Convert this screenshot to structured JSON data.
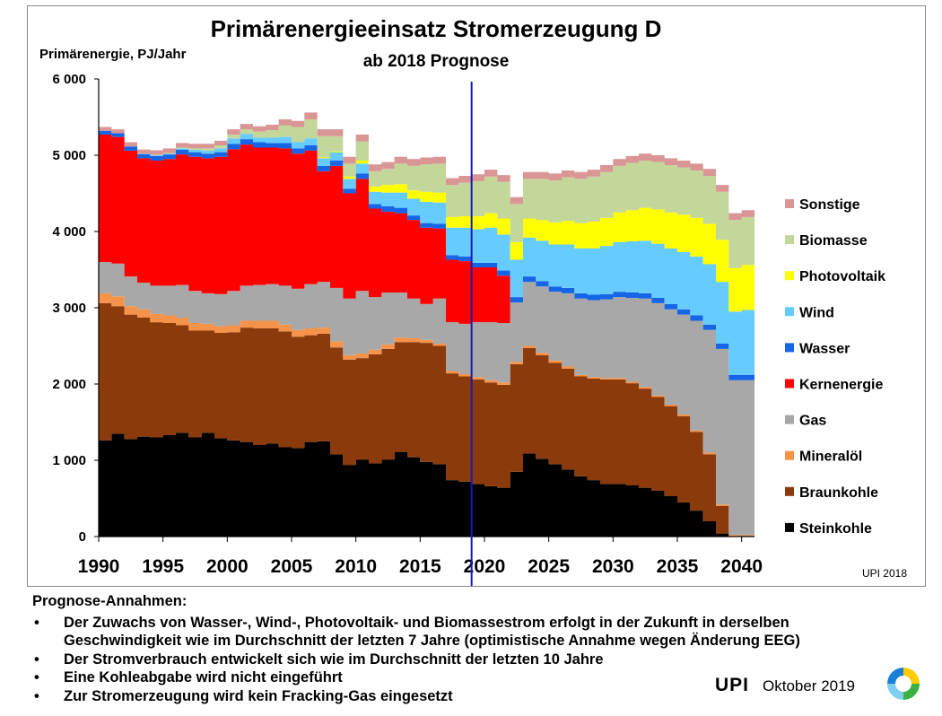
{
  "chart_data": {
    "type": "area",
    "stacked": true,
    "step": true,
    "title": "Primärenergieeinsatz Stromerzeugung D",
    "subtitle": "ab 2018 Prognose",
    "ylabel": "Primärenergie, PJ/Jahr",
    "ylim": [
      0,
      6000
    ],
    "yticks": [
      0,
      1000,
      2000,
      3000,
      4000,
      5000,
      6000
    ],
    "ytick_labels": [
      "0",
      "1 000",
      "2 000",
      "3 000",
      "4 000",
      "5 000",
      "6 000"
    ],
    "xlim": [
      1990,
      2041
    ],
    "xticks": [
      1990,
      1995,
      2000,
      2005,
      2010,
      2015,
      2020,
      2025,
      2030,
      2035,
      2040
    ],
    "xtick_labels": [
      "1990",
      "1995",
      "2000",
      "2005",
      "2010",
      "2015",
      "2020",
      "2025",
      "2030",
      "2035",
      "2040"
    ],
    "marker_year": 2019,
    "marker_color": "#1a1ab0",
    "legend_position": "right",
    "credit": "UPI 2018",
    "x": [
      1990,
      1991,
      1992,
      1993,
      1994,
      1995,
      1996,
      1997,
      1998,
      1999,
      2000,
      2001,
      2002,
      2003,
      2004,
      2005,
      2006,
      2007,
      2008,
      2009,
      2010,
      2011,
      2012,
      2013,
      2014,
      2015,
      2016,
      2017,
      2018,
      2019,
      2020,
      2021,
      2022,
      2023,
      2024,
      2025,
      2026,
      2027,
      2028,
      2029,
      2030,
      2031,
      2032,
      2033,
      2034,
      2035,
      2036,
      2037,
      2038,
      2039,
      2040
    ],
    "series": [
      {
        "name": "Steinkohle",
        "color": "#000000",
        "values": [
          1260,
          1350,
          1280,
          1310,
          1300,
          1330,
          1360,
          1300,
          1360,
          1290,
          1260,
          1240,
          1200,
          1220,
          1170,
          1160,
          1240,
          1250,
          1080,
          940,
          1010,
          960,
          1010,
          1110,
          1040,
          980,
          950,
          740,
          720,
          690,
          660,
          640,
          850,
          1090,
          1020,
          950,
          880,
          790,
          740,
          690,
          690,
          670,
          640,
          600,
          530,
          450,
          340,
          200,
          40,
          0,
          0
        ]
      },
      {
        "name": "Braunkohle",
        "color": "#8b3a0b",
        "values": [
          1800,
          1670,
          1630,
          1560,
          1510,
          1470,
          1410,
          1400,
          1340,
          1380,
          1420,
          1500,
          1530,
          1510,
          1520,
          1460,
          1400,
          1410,
          1400,
          1380,
          1330,
          1430,
          1450,
          1440,
          1510,
          1560,
          1550,
          1400,
          1380,
          1370,
          1360,
          1350,
          1410,
          1380,
          1360,
          1330,
          1320,
          1310,
          1330,
          1370,
          1370,
          1340,
          1300,
          1230,
          1180,
          1130,
          1030,
          880,
          360,
          0,
          0
        ]
      },
      {
        "name": "Mineralöl",
        "color": "#f6934a",
        "values": [
          130,
          130,
          110,
          110,
          110,
          100,
          100,
          100,
          90,
          90,
          90,
          90,
          100,
          100,
          90,
          90,
          90,
          80,
          80,
          60,
          60,
          60,
          60,
          60,
          50,
          40,
          30,
          30,
          30,
          30,
          30,
          30,
          30,
          30,
          30,
          30,
          30,
          20,
          20,
          20,
          20,
          20,
          20,
          20,
          20,
          20,
          20,
          20,
          20,
          20,
          20
        ]
      },
      {
        "name": "Gas",
        "color": "#a8a8a8",
        "values": [
          410,
          430,
          390,
          350,
          370,
          390,
          430,
          420,
          400,
          420,
          450,
          460,
          470,
          480,
          510,
          540,
          580,
          600,
          700,
          740,
          820,
          690,
          680,
          590,
          520,
          470,
          590,
          640,
          660,
          720,
          760,
          780,
          780,
          840,
          870,
          900,
          960,
          1000,
          1010,
          1030,
          1060,
          1100,
          1160,
          1210,
          1250,
          1310,
          1440,
          1610,
          2040,
          2030,
          2030
        ]
      },
      {
        "name": "Kernenergie",
        "color": "#ff0000",
        "values": [
          1670,
          1660,
          1650,
          1630,
          1640,
          1660,
          1710,
          1760,
          1770,
          1800,
          1860,
          1850,
          1800,
          1790,
          1800,
          1770,
          1750,
          1450,
          1600,
          1380,
          1470,
          1160,
          1060,
          1040,
          1030,
          1000,
          920,
          820,
          820,
          720,
          720,
          620,
          0,
          0,
          0,
          0,
          0,
          0,
          0,
          0,
          0,
          0,
          0,
          0,
          0,
          0,
          0,
          0,
          0,
          0,
          0
        ]
      },
      {
        "name": "Wasser",
        "color": "#1565e6",
        "values": [
          50,
          50,
          55,
          55,
          60,
          60,
          60,
          60,
          60,
          60,
          70,
          70,
          70,
          60,
          70,
          70,
          70,
          70,
          70,
          60,
          70,
          60,
          70,
          70,
          60,
          60,
          60,
          60,
          60,
          60,
          60,
          70,
          70,
          70,
          70,
          70,
          70,
          70,
          70,
          70,
          70,
          70,
          70,
          70,
          70,
          70,
          70,
          70,
          70,
          70,
          70
        ]
      },
      {
        "name": "Wind",
        "color": "#66ccff",
        "values": [
          0,
          0,
          0,
          5,
          10,
          10,
          20,
          30,
          40,
          50,
          70,
          70,
          60,
          70,
          80,
          80,
          90,
          100,
          110,
          130,
          130,
          160,
          180,
          200,
          220,
          280,
          280,
          360,
          380,
          440,
          460,
          470,
          490,
          510,
          530,
          550,
          570,
          590,
          610,
          630,
          650,
          670,
          690,
          710,
          730,
          750,
          770,
          790,
          810,
          830,
          850
        ]
      },
      {
        "name": "Photovoltaik",
        "color": "#ffff00",
        "values": [
          0,
          0,
          0,
          0,
          0,
          0,
          0,
          0,
          0,
          0,
          0,
          0,
          0,
          0,
          0,
          0,
          0,
          10,
          10,
          30,
          40,
          70,
          100,
          110,
          110,
          130,
          130,
          140,
          150,
          170,
          190,
          210,
          230,
          250,
          270,
          290,
          310,
          330,
          350,
          370,
          390,
          410,
          430,
          450,
          470,
          490,
          510,
          530,
          550,
          570,
          590
        ]
      },
      {
        "name": "Biomasse",
        "color": "#c4d79b",
        "values": [
          0,
          0,
          0,
          0,
          5,
          10,
          10,
          20,
          30,
          40,
          50,
          60,
          80,
          100,
          150,
          200,
          250,
          280,
          200,
          170,
          250,
          200,
          210,
          270,
          320,
          360,
          380,
          420,
          440,
          460,
          480,
          480,
          500,
          520,
          540,
          550,
          570,
          580,
          590,
          600,
          610,
          620,
          620,
          620,
          620,
          620,
          620,
          630,
          630,
          630,
          630
        ]
      },
      {
        "name": "Sonstige",
        "color": "#da9694",
        "values": [
          50,
          50,
          55,
          55,
          60,
          60,
          60,
          60,
          60,
          60,
          70,
          70,
          70,
          70,
          80,
          80,
          90,
          90,
          90,
          90,
          90,
          90,
          90,
          90,
          90,
          90,
          90,
          90,
          90,
          90,
          90,
          90,
          90,
          90,
          90,
          90,
          90,
          90,
          90,
          90,
          90,
          90,
          90,
          90,
          90,
          90,
          90,
          90,
          90,
          90,
          90
        ]
      }
    ]
  },
  "notes": {
    "heading": "Prognose-Annahmen:",
    "bullet": "•",
    "items": [
      "Der Zuwachs von Wasser-, Wind-, Photovoltaik- und Biomassestrom erfolgt in der Zukunft in derselben Geschwindigkeit wie im Durchschnitt der letzten 7 Jahre (optimistische Annahme wegen Änderung EEG)",
      "Der Stromverbrauch entwickelt sich wie im Durchschnitt der letzten 10 Jahre",
      "Eine Kohleabgabe wird nicht eingeführt",
      "Zur Stromerzeugung wird kein Fracking-Gas eingesetzt"
    ]
  },
  "footer": {
    "org": "UPI",
    "date": "Oktober 2019"
  },
  "logo": {
    "colors": [
      "#1a7fd6",
      "#ffcc00",
      "#3cb043",
      "#7fd0f0"
    ]
  }
}
